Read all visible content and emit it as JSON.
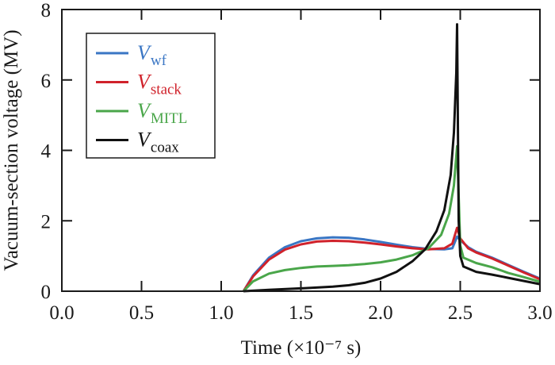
{
  "chart_data": {
    "type": "line",
    "title": "",
    "xlabel": "Time (×10⁻⁷ s)",
    "ylabel": "Vacuum-section voltage (MV)",
    "xlim": [
      0.0,
      3.0
    ],
    "ylim": [
      0,
      8
    ],
    "xticks": [
      "0.0",
      "0.5",
      "1.0",
      "1.5",
      "2.0",
      "2.5",
      "3.0"
    ],
    "xtick_values": [
      0.0,
      0.5,
      1.0,
      1.5,
      2.0,
      2.5,
      3.0
    ],
    "yticks": [
      "0",
      "2",
      "4",
      "6",
      "8"
    ],
    "ytick_values": [
      0,
      2,
      4,
      6,
      8
    ],
    "grid": false,
    "legend_position": "top-left",
    "series": [
      {
        "name": "V_wf",
        "label_main": "V",
        "label_sub": "wf",
        "color": "#3a76c4",
        "points": [
          [
            1.14,
            0
          ],
          [
            1.2,
            0.45
          ],
          [
            1.3,
            0.95
          ],
          [
            1.4,
            1.25
          ],
          [
            1.5,
            1.42
          ],
          [
            1.6,
            1.5
          ],
          [
            1.7,
            1.53
          ],
          [
            1.8,
            1.52
          ],
          [
            1.9,
            1.47
          ],
          [
            2.0,
            1.4
          ],
          [
            2.1,
            1.32
          ],
          [
            2.2,
            1.25
          ],
          [
            2.3,
            1.2
          ],
          [
            2.4,
            1.19
          ],
          [
            2.45,
            1.22
          ],
          [
            2.48,
            1.55
          ],
          [
            2.5,
            1.45
          ],
          [
            2.55,
            1.25
          ],
          [
            2.6,
            1.12
          ],
          [
            2.7,
            0.95
          ],
          [
            2.8,
            0.75
          ],
          [
            2.9,
            0.55
          ],
          [
            3.0,
            0.36
          ]
        ]
      },
      {
        "name": "V_stack",
        "label_main": "V",
        "label_sub": "stack",
        "color": "#d0222b",
        "points": [
          [
            1.14,
            0
          ],
          [
            1.2,
            0.42
          ],
          [
            1.3,
            0.9
          ],
          [
            1.4,
            1.18
          ],
          [
            1.5,
            1.33
          ],
          [
            1.6,
            1.41
          ],
          [
            1.7,
            1.43
          ],
          [
            1.8,
            1.42
          ],
          [
            1.9,
            1.38
          ],
          [
            2.0,
            1.33
          ],
          [
            2.1,
            1.27
          ],
          [
            2.2,
            1.22
          ],
          [
            2.3,
            1.19
          ],
          [
            2.4,
            1.22
          ],
          [
            2.45,
            1.35
          ],
          [
            2.48,
            1.8
          ],
          [
            2.5,
            1.5
          ],
          [
            2.55,
            1.22
          ],
          [
            2.6,
            1.1
          ],
          [
            2.7,
            0.93
          ],
          [
            2.8,
            0.73
          ],
          [
            2.9,
            0.53
          ],
          [
            3.0,
            0.34
          ]
        ]
      },
      {
        "name": "V_MITL",
        "label_main": "V",
        "label_sub": "MITL",
        "color": "#4aa64a",
        "points": [
          [
            1.14,
            0
          ],
          [
            1.2,
            0.28
          ],
          [
            1.3,
            0.5
          ],
          [
            1.4,
            0.6
          ],
          [
            1.5,
            0.66
          ],
          [
            1.6,
            0.7
          ],
          [
            1.7,
            0.72
          ],
          [
            1.8,
            0.74
          ],
          [
            1.9,
            0.77
          ],
          [
            2.0,
            0.82
          ],
          [
            2.1,
            0.9
          ],
          [
            2.2,
            1.02
          ],
          [
            2.3,
            1.22
          ],
          [
            2.38,
            1.6
          ],
          [
            2.43,
            2.2
          ],
          [
            2.46,
            3.0
          ],
          [
            2.48,
            4.12
          ],
          [
            2.5,
            1.3
          ],
          [
            2.52,
            0.95
          ],
          [
            2.6,
            0.8
          ],
          [
            2.7,
            0.68
          ],
          [
            2.8,
            0.52
          ],
          [
            2.9,
            0.4
          ],
          [
            3.0,
            0.27
          ]
        ]
      },
      {
        "name": "V_coax",
        "label_main": "V",
        "label_sub": "coax",
        "color": "#111111",
        "points": [
          [
            1.14,
            0
          ],
          [
            1.3,
            0.04
          ],
          [
            1.5,
            0.08
          ],
          [
            1.7,
            0.13
          ],
          [
            1.8,
            0.17
          ],
          [
            1.9,
            0.24
          ],
          [
            2.0,
            0.36
          ],
          [
            2.1,
            0.55
          ],
          [
            2.2,
            0.85
          ],
          [
            2.28,
            1.19
          ],
          [
            2.35,
            1.7
          ],
          [
            2.4,
            2.3
          ],
          [
            2.44,
            3.3
          ],
          [
            2.46,
            4.5
          ],
          [
            2.475,
            6.2
          ],
          [
            2.48,
            7.58
          ],
          [
            2.49,
            2.0
          ],
          [
            2.5,
            1.0
          ],
          [
            2.52,
            0.7
          ],
          [
            2.6,
            0.55
          ],
          [
            2.7,
            0.47
          ],
          [
            2.8,
            0.38
          ],
          [
            2.9,
            0.29
          ],
          [
            3.0,
            0.2
          ]
        ]
      }
    ]
  }
}
